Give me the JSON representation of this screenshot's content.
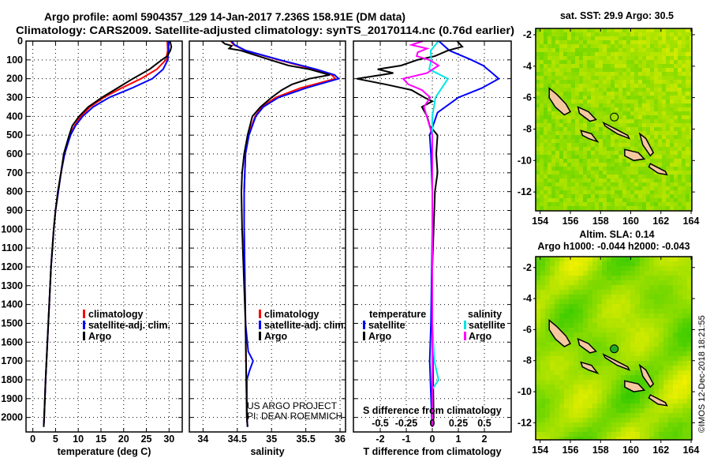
{
  "title_line1": "Argo profile: aoml 5904357_129 14-Jan-2017 7.236S 158.91E (DM data)",
  "title_line2": "Climatology: CARS2009. Satellite-adjusted climatology: synTS_20170114.nc (0.76d earlier)",
  "credit": "©IMOS 12-Dec-2018 18:21:55",
  "colors": {
    "climatology": "#ff0000",
    "satellite": "#0000ff",
    "argo": "#000000",
    "s_sat": "#00e5e5",
    "s_argo": "#ff00ff"
  },
  "chart_data": [
    {
      "type": "line",
      "id": "temperature",
      "xlabel": "temperature (deg C)",
      "ylabel": "pressure",
      "xlim": [
        -1.5,
        32.9
      ],
      "ylim": [
        2140,
        0
      ],
      "xticks": [
        0,
        5,
        10,
        15,
        20,
        25,
        30
      ],
      "yticks": [
        0,
        100,
        200,
        300,
        400,
        500,
        600,
        700,
        800,
        900,
        1000,
        1100,
        1200,
        1300,
        1400,
        1500,
        1600,
        1700,
        1800,
        1900,
        2000
      ],
      "legend": [
        "climatology",
        "satellite-adj. clim.",
        "Argo"
      ],
      "series": [
        {
          "name": "climatology",
          "color": "#ff0000",
          "depth": [
            0,
            50,
            100,
            150,
            200,
            250,
            300,
            350,
            400,
            450,
            500,
            600,
            700,
            800,
            900,
            1000,
            1200,
            1400,
            1600,
            1800,
            2000,
            2050
          ],
          "values": [
            29.6,
            29.7,
            29.3,
            27.3,
            23.8,
            19.5,
            15.6,
            12.6,
            10.6,
            9.2,
            8.2,
            7.0,
            6.2,
            5.6,
            5.0,
            4.6,
            4.0,
            3.6,
            3.2,
            2.8,
            2.5,
            2.4
          ]
        },
        {
          "name": "satellite-adj. clim.",
          "color": "#0000ff",
          "depth": [
            0,
            50,
            100,
            150,
            200,
            250,
            300,
            350,
            400,
            450,
            500,
            600,
            700,
            800,
            900,
            1000,
            1200,
            1400,
            1600,
            1800,
            2000,
            2050
          ],
          "values": [
            29.9,
            29.9,
            29.7,
            28.7,
            26.3,
            21.8,
            16.8,
            13.3,
            11.0,
            9.4,
            8.3,
            7.0,
            6.2,
            5.6,
            5.0,
            4.6,
            4.0,
            3.6,
            3.2,
            2.8,
            2.5,
            2.4
          ]
        },
        {
          "name": "Argo",
          "color": "#000000",
          "depth": [
            0,
            30,
            50,
            80,
            100,
            150,
            200,
            250,
            300,
            350,
            400,
            450,
            500,
            600,
            700,
            800,
            900,
            1000,
            1200,
            1400,
            1600,
            1800,
            2000,
            2050
          ],
          "values": [
            30.2,
            30.5,
            30.3,
            29.6,
            28.4,
            25.7,
            22.0,
            18.6,
            15.2,
            12.2,
            10.2,
            8.7,
            8.0,
            6.8,
            6.2,
            5.5,
            5.0,
            4.6,
            4.0,
            3.6,
            3.2,
            2.8,
            2.5,
            2.4
          ]
        }
      ]
    },
    {
      "type": "line",
      "id": "salinity",
      "xlabel": "salinity",
      "xlim": [
        33.8,
        36.08
      ],
      "ylim": [
        2140,
        0
      ],
      "xticks": [
        34,
        34.5,
        35,
        35.5,
        36
      ],
      "legend": [
        "climatology",
        "satellite-adj. clim.",
        "Argo"
      ],
      "annotation": [
        "US ARGO PROJECT",
        "PI: DEAN ROEMMICH"
      ],
      "series": [
        {
          "name": "climatology",
          "color": "#ff0000",
          "depth": [
            0,
            20,
            50,
            100,
            150,
            180,
            200,
            250,
            300,
            350,
            400,
            500,
            600,
            800,
            1000,
            1500,
            2000,
            2050
          ],
          "values": [
            34.4,
            34.45,
            34.62,
            35.1,
            35.62,
            35.88,
            35.93,
            35.42,
            35.06,
            34.86,
            34.76,
            34.66,
            34.62,
            34.6,
            34.6,
            34.62,
            34.64,
            34.65
          ]
        },
        {
          "name": "satellite-adj. clim.",
          "color": "#0000ff",
          "depth": [
            0,
            20,
            50,
            100,
            150,
            180,
            200,
            250,
            300,
            350,
            400,
            500,
            600,
            800,
            1000,
            1500,
            1650,
            1700,
            1750,
            1800,
            2000,
            2050
          ],
          "values": [
            34.42,
            34.46,
            34.62,
            35.12,
            35.65,
            35.92,
            35.98,
            35.5,
            35.1,
            34.88,
            34.77,
            34.67,
            34.62,
            34.6,
            34.6,
            34.62,
            34.66,
            34.73,
            34.68,
            34.64,
            34.64,
            34.65
          ]
        },
        {
          "name": "Argo",
          "color": "#000000",
          "depth": [
            0,
            15,
            25,
            40,
            50,
            100,
            130,
            150,
            180,
            200,
            230,
            260,
            300,
            350,
            400,
            500,
            600,
            700,
            800,
            1000,
            1200,
            1500,
            2000,
            2050
          ],
          "values": [
            34.27,
            34.32,
            34.42,
            34.38,
            34.55,
            34.98,
            35.25,
            35.55,
            35.85,
            35.55,
            35.3,
            35.15,
            35.0,
            34.84,
            34.72,
            34.65,
            34.6,
            34.57,
            34.56,
            34.57,
            34.59,
            34.62,
            34.64,
            34.65
          ]
        }
      ]
    },
    {
      "type": "line",
      "id": "differences",
      "xlabel": "T difference from climatology",
      "xlim": [
        -3.03,
        3.03
      ],
      "ylim": [
        2140,
        0
      ],
      "xticks": [
        -2,
        -1,
        0,
        1,
        2
      ],
      "secondary_xlabel": "S difference from climatology",
      "secondary_xticks": [
        "-0.5",
        "-0.25",
        "0",
        "0.25",
        "0.5"
      ],
      "s_scale": 4,
      "legend_t": {
        "title": "temperature",
        "items": [
          "satellite",
          "Argo"
        ]
      },
      "legend_s": {
        "title": "salinity",
        "items": [
          "satellite",
          "Argo"
        ]
      },
      "series": [
        {
          "name": "T satellite",
          "quantity": "T",
          "color": "#0000ff",
          "depth": [
            0,
            50,
            100,
            130,
            170,
            200,
            250,
            300,
            380,
            500,
            600,
            800,
            1000,
            1500,
            1700,
            2000,
            2050
          ],
          "values": [
            0.25,
            0.65,
            1.5,
            1.95,
            2.3,
            2.55,
            1.9,
            1.0,
            0.2,
            -0.1,
            -0.05,
            0.0,
            0.0,
            -0.05,
            -0.1,
            -0.02,
            0.0
          ]
        },
        {
          "name": "T Argo",
          "quantity": "T",
          "color": "#000000",
          "depth": [
            0,
            30,
            50,
            80,
            100,
            130,
            150,
            170,
            200,
            230,
            260,
            300,
            320,
            350,
            400,
            450,
            500,
            600,
            700,
            800,
            1000,
            1200,
            1500,
            2000,
            2050
          ],
          "values": [
            0.95,
            1.15,
            0.6,
            0.1,
            -0.57,
            -1.2,
            -2.1,
            -1.5,
            -2.9,
            -1.8,
            -0.8,
            -0.3,
            0.0,
            -0.4,
            -0.2,
            -0.1,
            0.2,
            0.15,
            0.2,
            0.1,
            0.05,
            0.0,
            0.0,
            0.05,
            0.0
          ]
        },
        {
          "name": "S satellite",
          "quantity": "S",
          "color": "#00e5e5",
          "depth": [
            0,
            50,
            100,
            150,
            200,
            250,
            300,
            400,
            600,
            1000,
            1500,
            1700,
            1800,
            1850,
            2000,
            2050
          ],
          "values": [
            0.06,
            -0.015,
            -0.01,
            -0.03,
            0.15,
            0.09,
            0.03,
            0.0,
            0.0,
            0.0,
            0.0,
            0.02,
            0.06,
            0.0,
            0.0,
            0.0
          ]
        },
        {
          "name": "S Argo",
          "quantity": "S",
          "color": "#ff00ff",
          "depth": [
            0,
            20,
            40,
            60,
            80,
            100,
            130,
            170,
            200,
            230,
            260,
            300,
            350,
            500,
            800,
            1500,
            2000,
            2050
          ],
          "values": [
            -0.09,
            -0.2,
            -0.05,
            -0.14,
            -0.15,
            -0.03,
            0.06,
            -0.05,
            -0.28,
            -0.23,
            -0.1,
            -0.02,
            -0.08,
            0.0,
            0.0,
            0.0,
            0.0,
            0.0
          ]
        }
      ]
    },
    {
      "type": "heatmap",
      "id": "sst_map",
      "title": "sat. SST: 29.9 Argo: 30.5",
      "xticks": [
        154,
        156,
        158,
        160,
        162,
        164
      ],
      "yticks": [
        -2,
        -4,
        -6,
        -8,
        -10,
        -12
      ],
      "xlim": [
        153.7,
        164.05
      ],
      "ylim": [
        -13.2,
        -1.6
      ],
      "argo_position": {
        "lon": 158.91,
        "lat": -7.236
      }
    },
    {
      "type": "heatmap",
      "id": "sla_map",
      "title": "Altim. SLA: 0.14",
      "subtitle": "Argo h1000: -0.044 h2000: -0.043",
      "xticks": [
        154,
        156,
        158,
        160,
        162,
        164
      ],
      "yticks": [
        -2,
        -4,
        -6,
        -8,
        -10,
        -12
      ],
      "xlim": [
        153.7,
        164.05
      ],
      "ylim": [
        -13.1,
        -1.3
      ],
      "argo_position": {
        "lon": 158.91,
        "lat": -7.236
      }
    }
  ]
}
